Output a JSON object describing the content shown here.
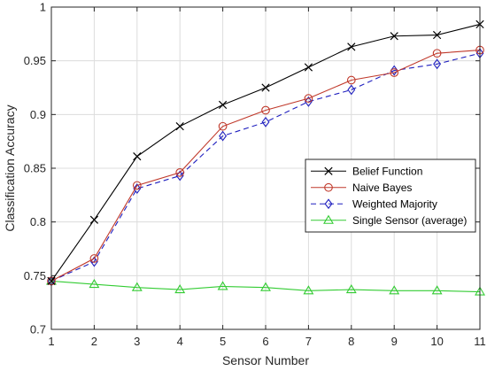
{
  "chart_data": {
    "type": "line",
    "title": "",
    "xlabel": "Sensor Number",
    "ylabel": "Classification Accuracy",
    "xlim": [
      1,
      11
    ],
    "ylim": [
      0.7,
      1
    ],
    "xticks": [
      "1",
      "2",
      "3",
      "4",
      "5",
      "6",
      "7",
      "8",
      "9",
      "10",
      "11"
    ],
    "yticks": [
      "0.7",
      "0.75",
      "0.8",
      "0.85",
      "0.9",
      "0.95",
      "1"
    ],
    "grid": true,
    "legend_position": "right, middle",
    "x": [
      1,
      2,
      3,
      4,
      5,
      6,
      7,
      8,
      9,
      10,
      11
    ],
    "series": [
      {
        "name": "Belief Function",
        "values": [
          0.745,
          0.802,
          0.861,
          0.889,
          0.909,
          0.925,
          0.944,
          0.963,
          0.973,
          0.974,
          0.984
        ],
        "color": "#000000",
        "marker": "x",
        "dash": "solid"
      },
      {
        "name": "Naive Bayes",
        "values": [
          0.745,
          0.766,
          0.834,
          0.846,
          0.889,
          0.904,
          0.915,
          0.932,
          0.939,
          0.957,
          0.96
        ],
        "color": "#c0392b",
        "marker": "circle",
        "dash": "solid"
      },
      {
        "name": "Weighted Majority",
        "values": [
          0.745,
          0.763,
          0.831,
          0.843,
          0.88,
          0.893,
          0.912,
          0.923,
          0.941,
          0.947,
          0.957
        ],
        "color": "#1f1fbf",
        "marker": "diamond",
        "dash": "dashed"
      },
      {
        "name": "Single Sensor (average)",
        "values": [
          0.745,
          0.742,
          0.739,
          0.737,
          0.74,
          0.739,
          0.736,
          0.737,
          0.736,
          0.736,
          0.735
        ],
        "color": "#33cc33",
        "marker": "triangle",
        "dash": "solid"
      }
    ]
  }
}
